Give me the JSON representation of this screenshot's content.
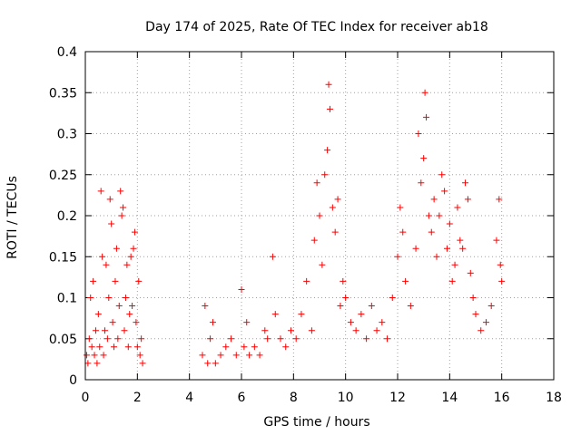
{
  "chart_data": {
    "type": "scatter",
    "title": "Day 174 of 2025, Rate Of TEC Index for receiver ab18",
    "xlabel": "GPS time / hours",
    "ylabel": "ROTI / TECUs",
    "xlim": [
      0,
      18
    ],
    "ylim": [
      0,
      0.4
    ],
    "x_ticks": [
      0,
      2,
      4,
      6,
      8,
      10,
      12,
      14,
      16,
      18
    ],
    "y_ticks": [
      0,
      0.05,
      0.1,
      0.15,
      0.2,
      0.25,
      0.3,
      0.35,
      0.4
    ],
    "x_tick_labels": [
      "0",
      "2",
      "4",
      "6",
      "8",
      "10",
      "12",
      "14",
      "16",
      "18"
    ],
    "y_tick_labels": [
      "0",
      "0.05",
      "0.1",
      "0.15",
      "0.2",
      "0.25",
      "0.3",
      "0.35",
      "0.4"
    ],
    "grid": true,
    "marker": "+",
    "color": "#ff0000",
    "series": [
      {
        "name": "ROTI",
        "points": [
          [
            0.05,
            0.03
          ],
          [
            0.1,
            0.02
          ],
          [
            0.15,
            0.05
          ],
          [
            0.2,
            0.1
          ],
          [
            0.25,
            0.04
          ],
          [
            0.3,
            0.12
          ],
          [
            0.35,
            0.03
          ],
          [
            0.4,
            0.06
          ],
          [
            0.45,
            0.02
          ],
          [
            0.5,
            0.08
          ],
          [
            0.55,
            0.04
          ],
          [
            0.6,
            0.23
          ],
          [
            0.65,
            0.15
          ],
          [
            0.7,
            0.03
          ],
          [
            0.75,
            0.06
          ],
          [
            0.8,
            0.14
          ],
          [
            0.85,
            0.05
          ],
          [
            0.9,
            0.1
          ],
          [
            0.95,
            0.22
          ],
          [
            1.0,
            0.19
          ],
          [
            1.05,
            0.07
          ],
          [
            1.1,
            0.04
          ],
          [
            1.15,
            0.12
          ],
          [
            1.2,
            0.16
          ],
          [
            1.25,
            0.05
          ],
          [
            1.3,
            0.09
          ],
          [
            1.35,
            0.23
          ],
          [
            1.4,
            0.2
          ],
          [
            1.45,
            0.21
          ],
          [
            1.5,
            0.06
          ],
          [
            1.55,
            0.1
          ],
          [
            1.6,
            0.14
          ],
          [
            1.65,
            0.04
          ],
          [
            1.7,
            0.08
          ],
          [
            1.75,
            0.15
          ],
          [
            1.8,
            0.09
          ],
          [
            1.85,
            0.16
          ],
          [
            1.9,
            0.18
          ],
          [
            1.95,
            0.07
          ],
          [
            2.0,
            0.04
          ],
          [
            2.05,
            0.12
          ],
          [
            2.1,
            0.03
          ],
          [
            2.15,
            0.05
          ],
          [
            2.2,
            0.02
          ],
          [
            4.5,
            0.03
          ],
          [
            4.6,
            0.09
          ],
          [
            4.7,
            0.02
          ],
          [
            4.8,
            0.05
          ],
          [
            4.9,
            0.07
          ],
          [
            5.0,
            0.02
          ],
          [
            5.2,
            0.03
          ],
          [
            5.4,
            0.04
          ],
          [
            5.6,
            0.05
          ],
          [
            5.8,
            0.03
          ],
          [
            6.0,
            0.11
          ],
          [
            6.1,
            0.04
          ],
          [
            6.2,
            0.07
          ],
          [
            6.3,
            0.03
          ],
          [
            6.5,
            0.04
          ],
          [
            6.7,
            0.03
          ],
          [
            6.9,
            0.06
          ],
          [
            7.0,
            0.05
          ],
          [
            7.2,
            0.15
          ],
          [
            7.3,
            0.08
          ],
          [
            7.5,
            0.05
          ],
          [
            7.7,
            0.04
          ],
          [
            7.9,
            0.06
          ],
          [
            8.1,
            0.05
          ],
          [
            8.3,
            0.08
          ],
          [
            8.5,
            0.12
          ],
          [
            8.7,
            0.06
          ],
          [
            8.8,
            0.17
          ],
          [
            8.9,
            0.24
          ],
          [
            9.0,
            0.2
          ],
          [
            9.1,
            0.14
          ],
          [
            9.2,
            0.25
          ],
          [
            9.3,
            0.28
          ],
          [
            9.35,
            0.36
          ],
          [
            9.4,
            0.33
          ],
          [
            9.5,
            0.21
          ],
          [
            9.6,
            0.18
          ],
          [
            9.7,
            0.22
          ],
          [
            9.8,
            0.09
          ],
          [
            9.9,
            0.12
          ],
          [
            10.0,
            0.1
          ],
          [
            10.2,
            0.07
          ],
          [
            10.4,
            0.06
          ],
          [
            10.6,
            0.08
          ],
          [
            10.8,
            0.05
          ],
          [
            11.0,
            0.09
          ],
          [
            11.2,
            0.06
          ],
          [
            11.4,
            0.07
          ],
          [
            11.6,
            0.05
          ],
          [
            11.8,
            0.1
          ],
          [
            12.0,
            0.15
          ],
          [
            12.1,
            0.21
          ],
          [
            12.2,
            0.18
          ],
          [
            12.3,
            0.12
          ],
          [
            12.5,
            0.09
          ],
          [
            12.7,
            0.16
          ],
          [
            12.8,
            0.3
          ],
          [
            12.9,
            0.24
          ],
          [
            13.0,
            0.27
          ],
          [
            13.05,
            0.35
          ],
          [
            13.1,
            0.32
          ],
          [
            13.2,
            0.2
          ],
          [
            13.3,
            0.18
          ],
          [
            13.4,
            0.22
          ],
          [
            13.5,
            0.15
          ],
          [
            13.6,
            0.2
          ],
          [
            13.7,
            0.25
          ],
          [
            13.8,
            0.23
          ],
          [
            13.9,
            0.16
          ],
          [
            14.0,
            0.19
          ],
          [
            14.1,
            0.12
          ],
          [
            14.2,
            0.14
          ],
          [
            14.3,
            0.21
          ],
          [
            14.4,
            0.17
          ],
          [
            14.5,
            0.16
          ],
          [
            14.6,
            0.24
          ],
          [
            14.7,
            0.22
          ],
          [
            14.8,
            0.13
          ],
          [
            14.9,
            0.1
          ],
          [
            15.0,
            0.08
          ],
          [
            15.2,
            0.06
          ],
          [
            15.4,
            0.07
          ],
          [
            15.6,
            0.09
          ],
          [
            15.8,
            0.17
          ],
          [
            15.9,
            0.22
          ],
          [
            15.95,
            0.14
          ],
          [
            16.0,
            0.12
          ]
        ]
      }
    ]
  }
}
